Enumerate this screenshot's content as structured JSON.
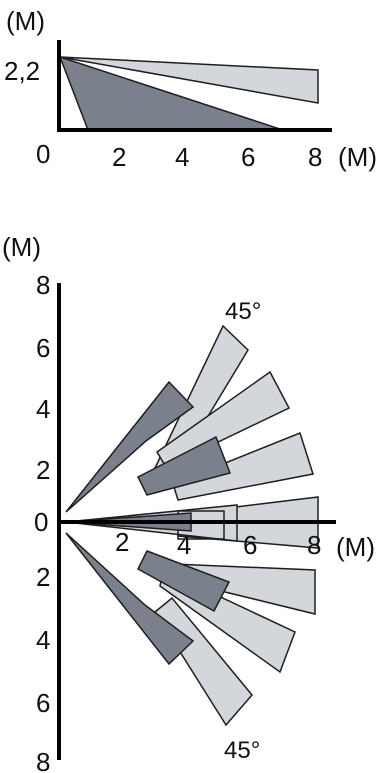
{
  "colors": {
    "axis": "#000000",
    "zone_light": "#d3d6db",
    "zone_dark": "#7b818c",
    "stroke": "#1e1e1e"
  },
  "side_view": {
    "y_unit": "(M)",
    "x_unit": "(M)",
    "y_tick": "2,2",
    "origin_label": "0",
    "x_ticks": [
      "2",
      "4",
      "6",
      "8"
    ]
  },
  "top_view": {
    "y_unit": "(M)",
    "x_unit": "(M)",
    "left_ticks": [
      "8",
      "6",
      "4",
      "2",
      "0",
      "2",
      "4",
      "6",
      "8"
    ],
    "x_ticks": [
      "2",
      "4",
      "6",
      "8"
    ],
    "angle_top": "45°",
    "angle_bottom": "45°"
  }
}
